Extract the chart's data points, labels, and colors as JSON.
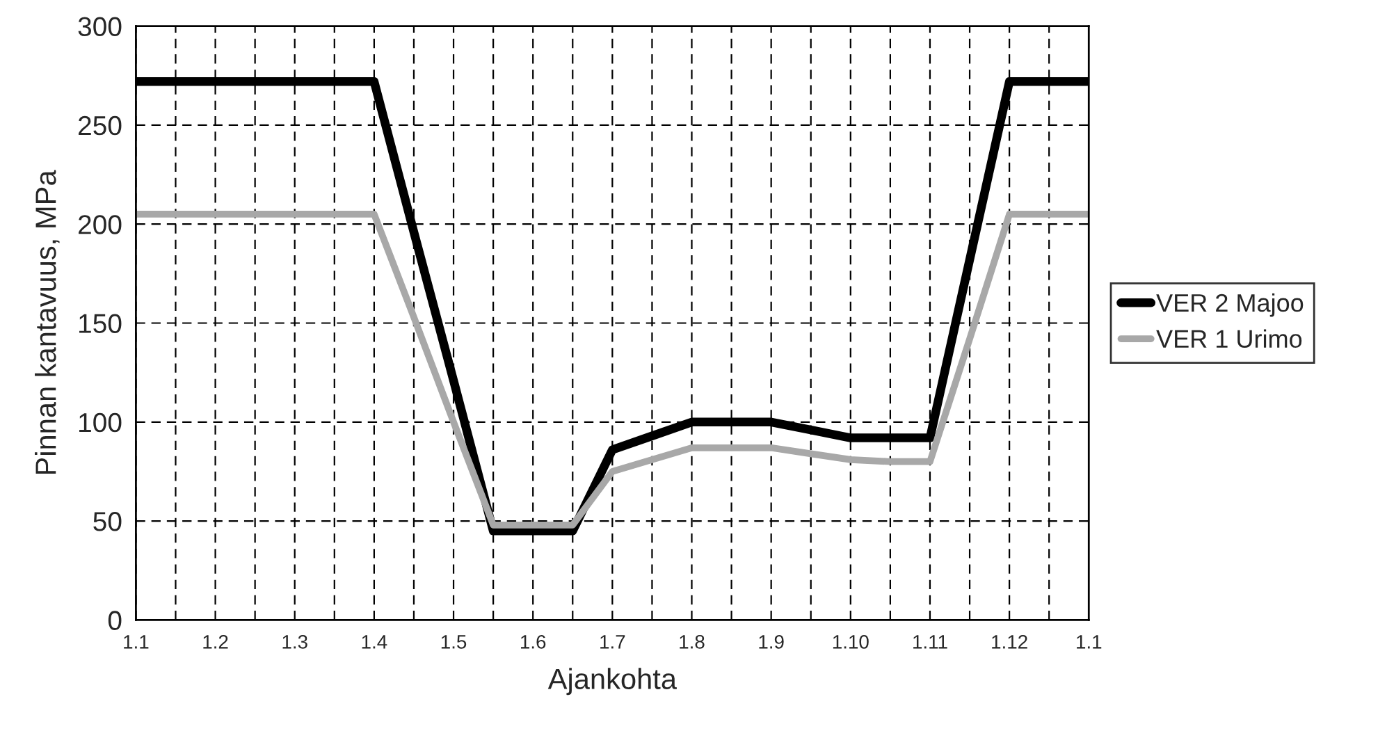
{
  "chart_data": {
    "type": "line",
    "xlabel": "Ajankohta",
    "ylabel": "Pinnan kantavuus, MPa",
    "categories": [
      "1.1",
      null,
      "1.2",
      null,
      "1.3",
      null,
      "1.4",
      null,
      "1.5",
      null,
      "1.6",
      null,
      "1.7",
      null,
      "1.8",
      null,
      "1.9",
      null,
      "1.10",
      null,
      "1.11",
      null,
      "1.12",
      null,
      "1.1"
    ],
    "series": [
      {
        "name": "VER 2 Majoo",
        "color": "#000000",
        "values": [
          272,
          272,
          272,
          272,
          272,
          272,
          272,
          196,
          121,
          45,
          45,
          45,
          86,
          93,
          100,
          100,
          100,
          96,
          92,
          92,
          92,
          182,
          272,
          272,
          272
        ]
      },
      {
        "name": "VER 1 Urimo",
        "color": "#a8a8a8",
        "values": [
          205,
          205,
          205,
          205,
          205,
          205,
          205,
          153,
          100,
          48,
          48,
          48,
          75,
          81,
          87,
          87,
          87,
          84,
          81,
          80,
          80,
          142,
          205,
          205,
          205
        ]
      }
    ],
    "ylim": [
      0,
      300
    ],
    "yticks": [
      0,
      50,
      100,
      150,
      200,
      250,
      300
    ],
    "grid": true,
    "legend": "right",
    "marker": "none",
    "line_style": "solid"
  }
}
